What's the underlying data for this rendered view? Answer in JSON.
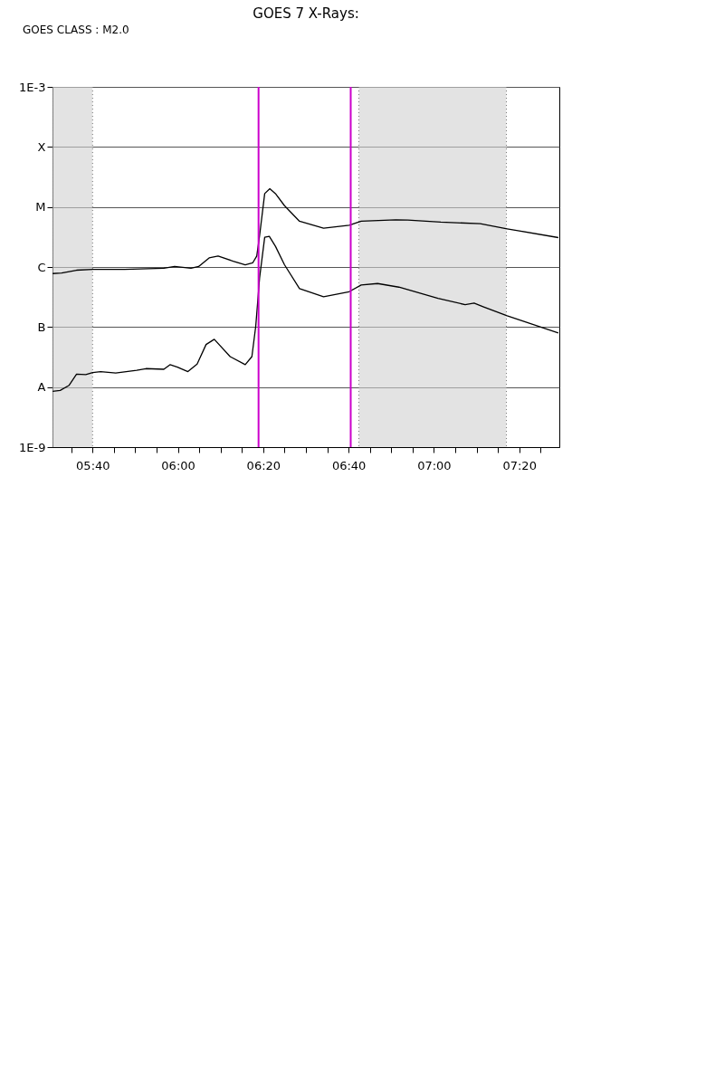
{
  "chart_data": {
    "type": "line",
    "title": "GOES 7 X-Rays:",
    "annotations": [
      "GOES CLASS : M2.0"
    ],
    "xlim": [
      5.51,
      7.49
    ],
    "xticks": [
      {
        "value": 5.5833,
        "label": null
      },
      {
        "value": 5.6667,
        "label": "05:40"
      },
      {
        "value": 5.75,
        "label": null
      },
      {
        "value": 5.8333,
        "label": null
      },
      {
        "value": 5.9167,
        "label": null
      },
      {
        "value": 6.0,
        "label": "06:00"
      },
      {
        "value": 6.0833,
        "label": null
      },
      {
        "value": 6.1667,
        "label": null
      },
      {
        "value": 6.25,
        "label": null
      },
      {
        "value": 6.3333,
        "label": "06:20"
      },
      {
        "value": 6.4167,
        "label": null
      },
      {
        "value": 6.5,
        "label": null
      },
      {
        "value": 6.5833,
        "label": null
      },
      {
        "value": 6.6667,
        "label": "06:40"
      },
      {
        "value": 6.75,
        "label": null
      },
      {
        "value": 6.8333,
        "label": null
      },
      {
        "value": 6.9167,
        "label": null
      },
      {
        "value": 7.0,
        "label": "07:00"
      },
      {
        "value": 7.0833,
        "label": null
      },
      {
        "value": 7.1667,
        "label": null
      },
      {
        "value": 7.25,
        "label": null
      },
      {
        "value": 7.3333,
        "label": "07:20"
      },
      {
        "value": 7.4167,
        "label": null
      }
    ],
    "log": "y",
    "ylim": [
      1e-09,
      0.001
    ],
    "yticks": [
      {
        "value": 1e-09,
        "label": "1E-9"
      },
      {
        "value": 1e-08,
        "label": "A"
      },
      {
        "value": 1e-07,
        "label": "B"
      },
      {
        "value": 1e-06,
        "label": "C"
      },
      {
        "value": 1e-05,
        "label": "M"
      },
      {
        "value": 0.0001,
        "label": "X"
      },
      {
        "value": 0.001,
        "label": "1E-3"
      }
    ],
    "grid": "y",
    "line_style": "solid",
    "series": [
      {
        "color": "#000000",
        "x": [
          5.51,
          5.546,
          5.604,
          5.667,
          5.792,
          5.945,
          5.987,
          6.051,
          6.081,
          6.122,
          6.157,
          6.216,
          6.263,
          6.292,
          6.308,
          6.319,
          6.339,
          6.359,
          6.381,
          6.4163,
          6.475,
          6.569,
          6.669,
          6.716,
          6.851,
          6.898,
          7.027,
          7.181,
          7.286,
          7.486
        ],
        "values": [
          7.78e-07,
          7.94e-07,
          8.85e-07,
          9.12e-07,
          9.12e-07,
          9.55e-07,
          1.02e-06,
          9.55e-07,
          1.02e-06,
          1.42e-06,
          1.52e-06,
          1.25e-06,
          1.09e-06,
          1.17e-06,
          1.52e-06,
          3.31e-06,
          1.67e-05,
          2.02e-05,
          1.67e-05,
          1.05e-05,
          5.78e-06,
          4.43e-06,
          4.97e-06,
          5.78e-06,
          6.12e-06,
          6.05e-06,
          5.58e-06,
          5.27e-06,
          4.33e-06,
          3.09e-06
        ]
      },
      {
        "color": "#000000",
        "x": [
          5.51,
          5.54,
          5.575,
          5.604,
          5.64,
          5.667,
          5.698,
          5.757,
          5.839,
          5.875,
          5.945,
          5.969,
          5.998,
          6.039,
          6.075,
          6.11,
          6.142,
          6.204,
          6.263,
          6.289,
          6.304,
          6.319,
          6.339,
          6.357,
          6.381,
          6.4163,
          6.475,
          6.569,
          6.669,
          6.716,
          6.78,
          6.863,
          7.016,
          7.122,
          7.157,
          7.192,
          7.286,
          7.486
        ],
        "values": [
          8.51e-09,
          8.81e-09,
          1.07e-08,
          1.64e-08,
          1.61e-08,
          1.75e-08,
          1.81e-08,
          1.71e-08,
          1.91e-08,
          2.03e-08,
          1.98e-08,
          2.36e-08,
          2.15e-08,
          1.81e-08,
          2.41e-08,
          5.12e-08,
          6.24e-08,
          3.22e-08,
          2.36e-08,
          3.22e-08,
          1.03e-07,
          6.55e-07,
          3.13e-06,
          3.24e-06,
          2.21e-06,
          1.09e-06,
          4.37e-07,
          3.19e-07,
          3.88e-07,
          5.01e-07,
          5.31e-07,
          4.62e-07,
          3.01e-07,
          2.36e-07,
          2.5e-07,
          2.18e-07,
          1.54e-07,
          7.94e-08
        ]
      }
    ],
    "ref_lines": [
      {
        "axis": "x",
        "value": 6.315,
        "color": "#cc00cc"
      },
      {
        "axis": "x",
        "value": 6.675,
        "color": "#cc00cc"
      }
    ],
    "bands": [
      {
        "axis": "x",
        "from": 5.51,
        "to": 5.6667
      },
      {
        "axis": "x",
        "from": 6.7067,
        "to": 7.2833
      }
    ]
  }
}
